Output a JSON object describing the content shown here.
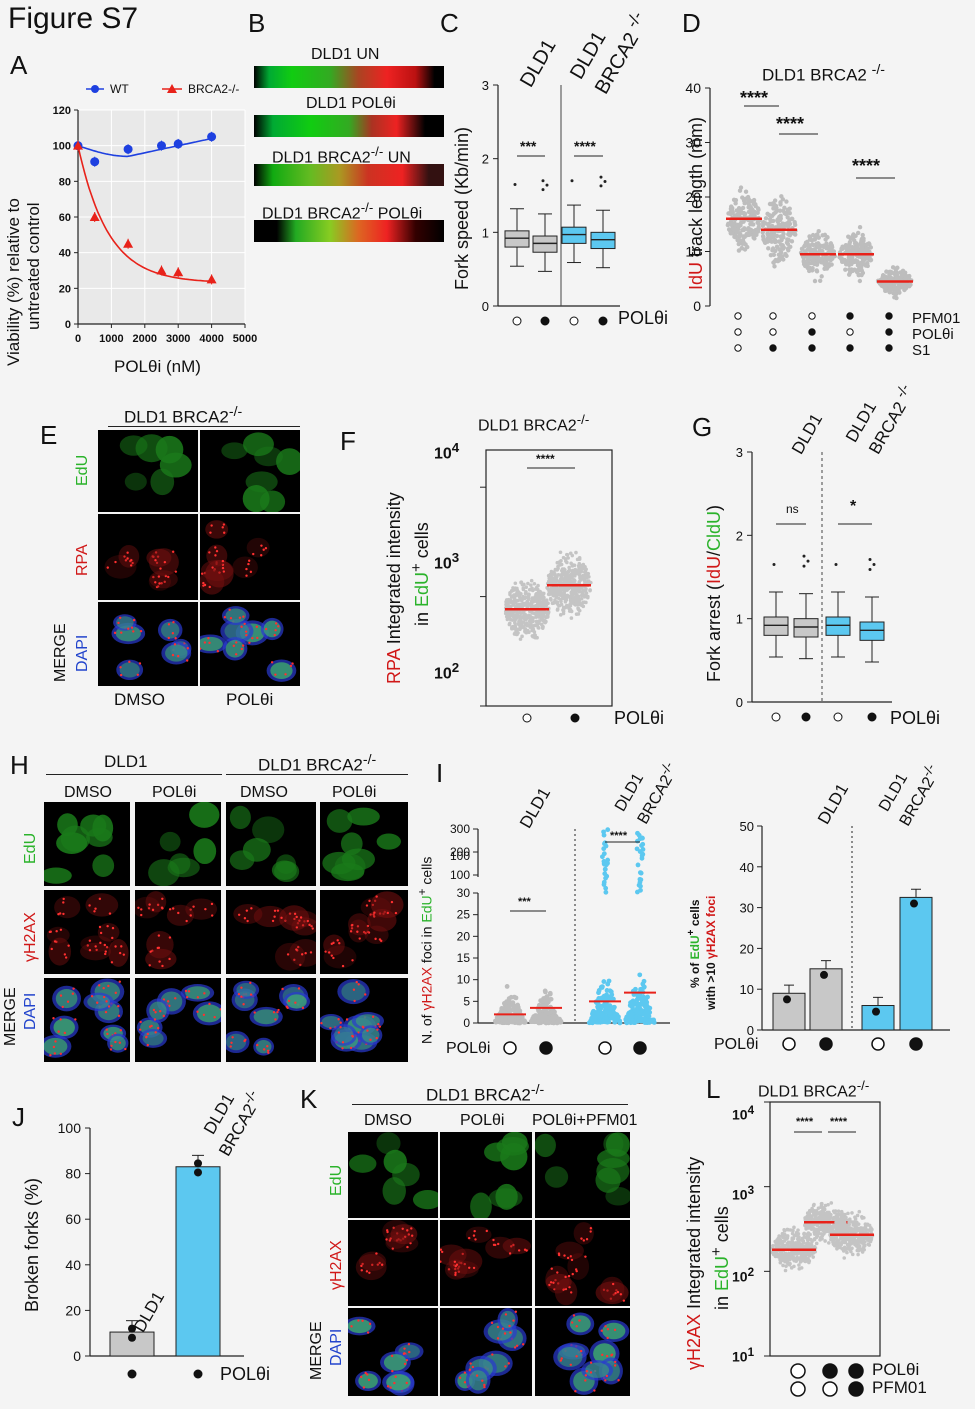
{
  "figure_title": "Figure S7",
  "panels": {
    "A": {
      "letter": "A",
      "legend": [
        "WT",
        "BRCA2-/-"
      ],
      "xlabel": "POLθi (nM)",
      "ylabel": "Viability (%) relative to untreated control",
      "ylabel1": "Viability (%) relative to",
      "ylabel2": "untreated control"
    },
    "B": {
      "letter": "B",
      "labels": [
        "DLD1 UN",
        "DLD1 POLθi",
        "DLD1 BRCA2-/- UN",
        "DLD1 BRCA2-/- POLθi"
      ]
    },
    "C": {
      "letter": "C",
      "ylabel": "Fork speed (Kb/min)",
      "cols": [
        "DLD1",
        "DLD1",
        "BRCA2 -/-"
      ],
      "sig": [
        "***",
        "****"
      ],
      "treat": "POLθi"
    },
    "D": {
      "letter": "D",
      "title": "DLD1 BRCA2 -/-",
      "ylabel_red": "IdU",
      "ylabel_rest": " track length (mm)",
      "sig": [
        "****",
        "****",
        "****"
      ],
      "rows": [
        "PFM01",
        "POLθi",
        "S1"
      ]
    },
    "E": {
      "letter": "E",
      "title": "DLD1 BRCA2-/-",
      "rows": [
        "EdU",
        "RPA",
        "MERGE",
        "DAPI"
      ],
      "cols": [
        "DMSO",
        "POLθi"
      ]
    },
    "F": {
      "letter": "F",
      "title": "DLD1 BRCA2-/-",
      "ylabel_red": "RPA",
      "ylabel_rest": " Integrated intensity",
      "ylabel2_pre": "in ",
      "ylabel2_green": "EdU",
      "ylabel2_post": "+ cells",
      "sig": "****",
      "treat": "POLθi",
      "ticks": [
        "10",
        "10",
        "10"
      ]
    },
    "G": {
      "letter": "G",
      "cols": [
        "DLD1",
        "DLD1",
        "BRCA2 -/-"
      ],
      "ylabel_pre": "Fork arrest (",
      "ylabel_red": "IdU",
      "ylabel_slash": "/",
      "ylabel_green": "CldU",
      "ylabel_post": ")",
      "sig": [
        "ns",
        "*"
      ],
      "treat": "POLθi"
    },
    "H": {
      "letter": "H",
      "groups": [
        "DLD1",
        "DLD1 BRCA2-/-"
      ],
      "cols": [
        "DMSO",
        "POLθi",
        "DMSO",
        "POLθi"
      ],
      "rows": [
        "EdU",
        "γH2AX",
        "MERGE",
        "DAPI"
      ]
    },
    "I": {
      "letter": "I",
      "cols": [
        "DLD1",
        "DLD1",
        "BRCA2-/-"
      ],
      "ylabel": "N. of γH2AX foci in EdU+ cells",
      "sig": [
        "***",
        "****"
      ],
      "treat": "POLθi",
      "ylabel2": "% of EdU+ cells with >10 γH2AX foci"
    },
    "J": {
      "letter": "J",
      "ylabel": "Broken forks (%)",
      "bars": [
        "DLD1",
        "DLD1",
        "BRCA2-/-"
      ],
      "treat": "POLθi"
    },
    "K": {
      "letter": "K",
      "title": "DLD1 BRCA2-/-",
      "cols": [
        "DMSO",
        "POLθi",
        "POLθi+PFM01"
      ],
      "rows": [
        "EdU",
        "γH2AX",
        "MERGE",
        "DAPI"
      ]
    },
    "L": {
      "letter": "L",
      "title": "DLD1 BRCA2-/-",
      "ylabel": "γH2AX Integrated intensity in EdU+ cells",
      "sig": [
        "****",
        "****"
      ],
      "rows": [
        "POLθi",
        "PFM01"
      ]
    }
  },
  "chart_data": [
    {
      "panel": "A",
      "type": "line",
      "series": [
        {
          "name": "WT",
          "color": "#1e40e0",
          "x": [
            0,
            500,
            1500,
            2500,
            3000,
            4000
          ],
          "y": [
            100,
            91,
            98,
            100,
            101,
            105
          ]
        },
        {
          "name": "BRCA2-/-",
          "color": "#e8221a",
          "x": [
            0,
            500,
            1500,
            2500,
            3000,
            4000
          ],
          "y": [
            100,
            60,
            45,
            30,
            29,
            25
          ]
        }
      ],
      "xlim": [
        0,
        5000
      ],
      "ylim": [
        0,
        120
      ],
      "xticks": [
        0,
        1000,
        2000,
        3000,
        4000,
        5000
      ],
      "yticks": [
        0,
        20,
        40,
        60,
        80,
        100,
        120
      ]
    },
    {
      "panel": "C",
      "type": "box",
      "ylim": [
        0,
        3
      ],
      "yticks": [
        0,
        1,
        2,
        3
      ],
      "medians": [
        0.92,
        0.85,
        0.97,
        0.9
      ],
      "colors": [
        "#c8c8c8",
        "#c8c8c8",
        "#5cc8f0",
        "#5cc8f0"
      ]
    },
    {
      "panel": "D",
      "type": "scatter",
      "ylim": [
        0,
        40
      ],
      "yticks": [
        0,
        10,
        20,
        30,
        40
      ],
      "means": [
        16,
        14,
        9.5,
        9.5,
        4.5
      ]
    },
    {
      "panel": "F",
      "type": "scatter",
      "ylog": true,
      "means": [
        350,
        580
      ]
    },
    {
      "panel": "G",
      "type": "box",
      "ylim": [
        0,
        3
      ],
      "yticks": [
        0,
        1,
        2,
        3
      ],
      "medians": [
        0.92,
        0.9,
        0.92,
        0.86
      ],
      "colors": [
        "#c8c8c8",
        "#c8c8c8",
        "#5cc8f0",
        "#5cc8f0"
      ]
    },
    {
      "panel": "I-left",
      "type": "scatter",
      "yticks_low": [
        0,
        5,
        10,
        15,
        20,
        25,
        30
      ],
      "yticks_high": [
        100,
        200,
        300
      ],
      "means": [
        2,
        3.5,
        5,
        7
      ]
    },
    {
      "panel": "I-right",
      "type": "bar",
      "ylim": [
        0,
        50
      ],
      "yticks": [
        0,
        10,
        20,
        30,
        40,
        50
      ],
      "values": [
        9,
        15,
        6,
        32.5
      ],
      "colors": [
        "#c8c8c8",
        "#c8c8c8",
        "#5cc8f0",
        "#5cc8f0"
      ]
    },
    {
      "panel": "J",
      "type": "bar",
      "ylim": [
        0,
        100
      ],
      "yticks": [
        0,
        20,
        40,
        60,
        80,
        100
      ],
      "values": [
        10.5,
        83
      ],
      "colors": [
        "#c8c8c8",
        "#5cc8f0"
      ]
    },
    {
      "panel": "L",
      "type": "scatter",
      "ylog": true,
      "means": [
        180,
        380,
        270
      ]
    }
  ]
}
